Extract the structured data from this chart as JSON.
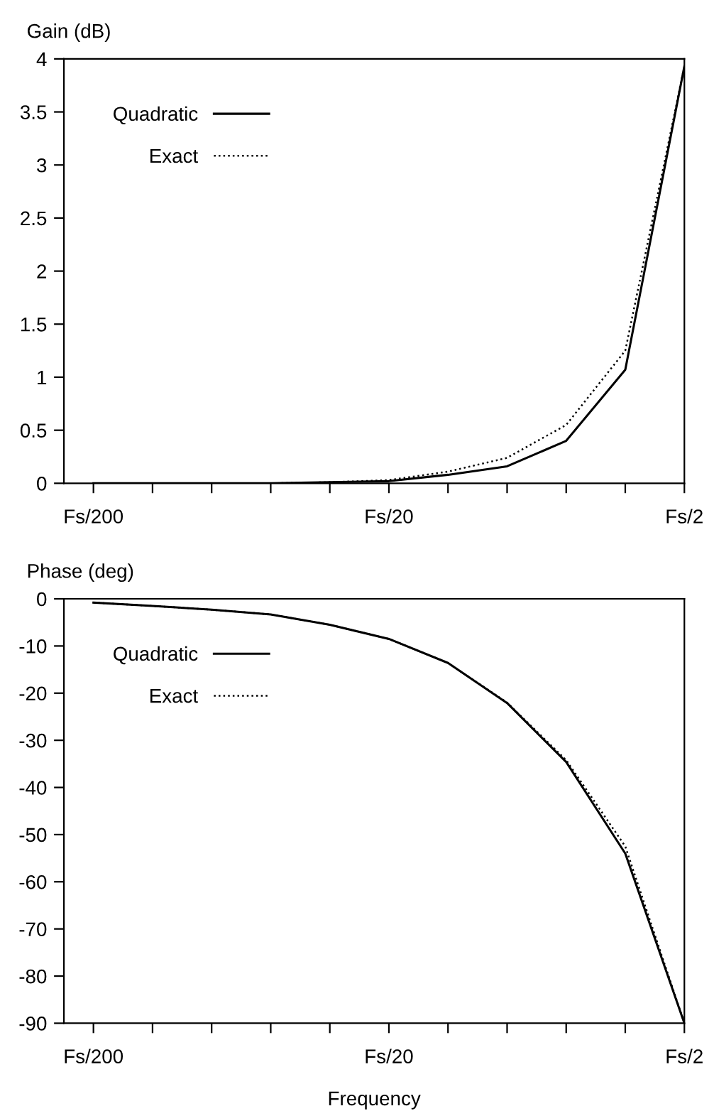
{
  "chart_data": [
    {
      "type": "line",
      "ylabel": "Gain (dB)",
      "legend": "top left",
      "grid": false,
      "ylim": [
        0,
        4
      ],
      "yticks": [
        0,
        0.5,
        1,
        1.5,
        2,
        2.5,
        3,
        3.5,
        4
      ],
      "categories": [
        "Fs/200",
        null,
        null,
        null,
        null,
        "Fs/20",
        null,
        null,
        null,
        null,
        "Fs/2"
      ],
      "series": [
        {
          "name": "Quadratic",
          "color": "#000000",
          "line_style": "solid",
          "values": [
            0,
            0,
            0,
            0,
            0.01,
            0.02,
            0.08,
            0.16,
            0.4,
            1.07,
            3.93
          ]
        },
        {
          "name": "Exact",
          "color": "#000000",
          "line_style": "dotted",
          "values": [
            0,
            0,
            0,
            0,
            0.01,
            0.03,
            0.11,
            0.24,
            0.55,
            1.25,
            3.93
          ]
        }
      ]
    },
    {
      "type": "line",
      "ylabel": "Phase (deg)",
      "xlabel": "Frequency",
      "legend": "top left",
      "grid": false,
      "ylim": [
        -90,
        0
      ],
      "yticks": [
        -90,
        -80,
        -70,
        -60,
        -50,
        -40,
        -30,
        -20,
        -10,
        0
      ],
      "categories": [
        "Fs/200",
        null,
        null,
        null,
        null,
        "Fs/20",
        null,
        null,
        null,
        null,
        "Fs/2"
      ],
      "series": [
        {
          "name": "Quadratic",
          "color": "#000000",
          "line_style": "solid",
          "values": [
            -0.8,
            -1.5,
            -2.3,
            -3.3,
            -5.5,
            -8.5,
            -13.6,
            -22.1,
            -34.6,
            -54,
            -90
          ]
        },
        {
          "name": "Exact",
          "color": "#000000",
          "line_style": "dotted",
          "values": [
            -0.8,
            -1.5,
            -2.3,
            -3.3,
            -5.5,
            -8.5,
            -13.6,
            -22.0,
            -34.2,
            -52.5,
            -90
          ]
        }
      ]
    }
  ]
}
